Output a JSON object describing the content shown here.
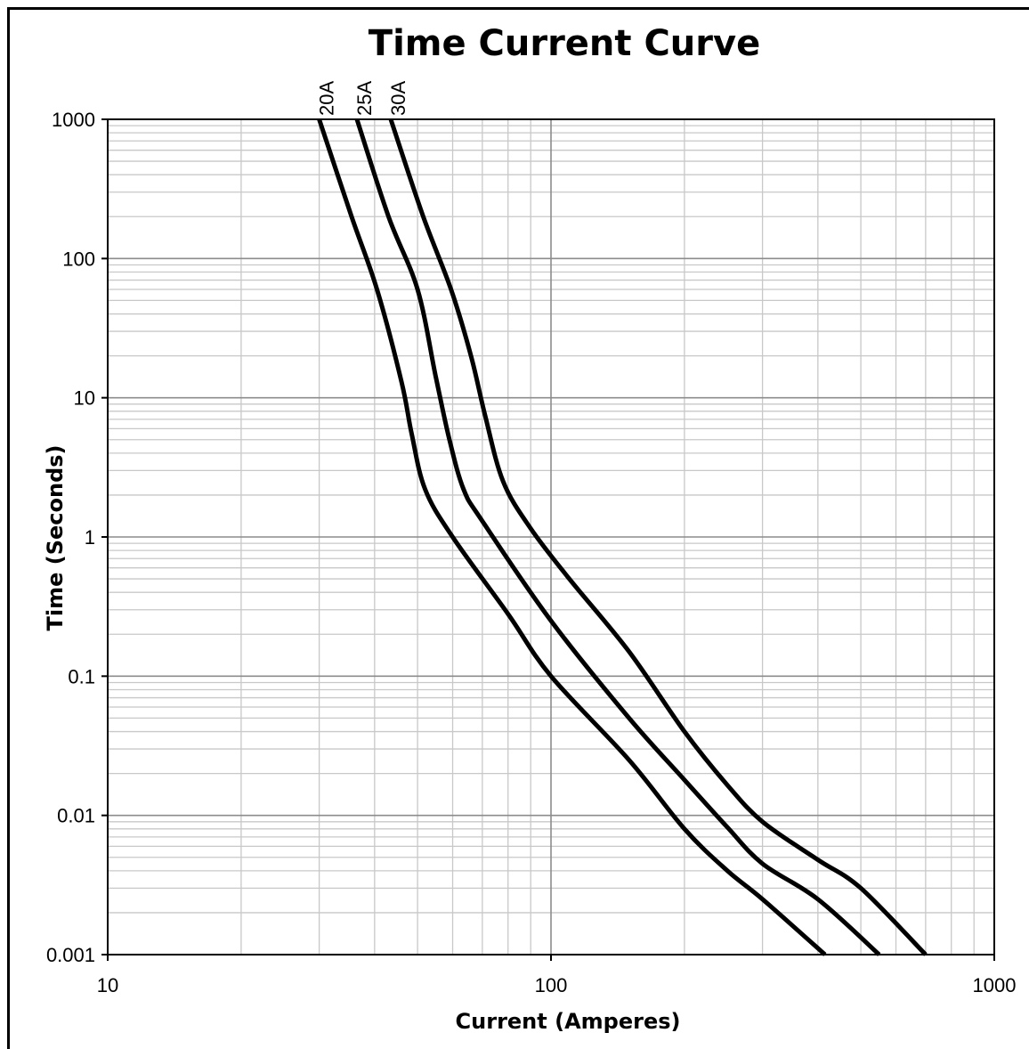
{
  "chart_data": {
    "type": "line",
    "title": "Time Current Curve",
    "xlabel": "Current  (Amperes)",
    "ylabel": "Time (Seconds)",
    "x_scale": "log",
    "y_scale": "log",
    "xlim": [
      10,
      1000
    ],
    "ylim": [
      0.001,
      1000
    ],
    "x_ticks": [
      10,
      100,
      1000
    ],
    "x_tick_labels": [
      "10",
      "100",
      "1000"
    ],
    "y_ticks": [
      0.001,
      0.01,
      0.1,
      1,
      10,
      100,
      1000
    ],
    "y_tick_labels": [
      "0.001",
      "0.01",
      "0.1",
      "1",
      "10",
      "100",
      "1000"
    ],
    "grid": true,
    "legend": "none",
    "line_color": "#000000",
    "series": [
      {
        "name": "20A",
        "points": [
          [
            30,
            1000
          ],
          [
            35.5,
            200
          ],
          [
            40.5,
            60
          ],
          [
            46,
            13
          ],
          [
            48.5,
            5.5
          ],
          [
            52,
            2.2
          ],
          [
            60,
            1.0
          ],
          [
            80,
            0.28
          ],
          [
            100,
            0.1
          ],
          [
            150,
            0.025
          ],
          [
            200,
            0.008
          ],
          [
            250,
            0.004
          ],
          [
            300,
            0.0025
          ],
          [
            415,
            0.001
          ]
        ]
      },
      {
        "name": "25A",
        "points": [
          [
            36.5,
            1000
          ],
          [
            43,
            200
          ],
          [
            50,
            60
          ],
          [
            55,
            14
          ],
          [
            59,
            5
          ],
          [
            63.5,
            2.2
          ],
          [
            70,
            1.3
          ],
          [
            100,
            0.25
          ],
          [
            150,
            0.05
          ],
          [
            200,
            0.018
          ],
          [
            250,
            0.0082
          ],
          [
            300,
            0.0045
          ],
          [
            400,
            0.0025
          ],
          [
            550,
            0.001
          ]
        ]
      },
      {
        "name": "30A",
        "points": [
          [
            43.5,
            1000
          ],
          [
            51.5,
            200
          ],
          [
            59.5,
            60
          ],
          [
            66,
            20
          ],
          [
            71,
            7.5
          ],
          [
            78,
            2.5
          ],
          [
            90,
            1.15
          ],
          [
            110,
            0.5
          ],
          [
            150,
            0.15
          ],
          [
            200,
            0.04
          ],
          [
            250,
            0.0165
          ],
          [
            300,
            0.009
          ],
          [
            400,
            0.0048
          ],
          [
            500,
            0.003
          ],
          [
            700,
            0.001
          ]
        ]
      }
    ]
  }
}
